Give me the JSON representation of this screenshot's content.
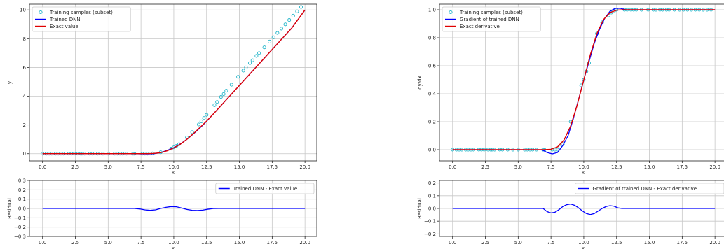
{
  "colors": {
    "samples": "#1fb4c8",
    "dnn": "#0000ff",
    "exact": "#e00000",
    "grid": "#c8c8c8",
    "axis": "#222222"
  },
  "chart_data": [
    {
      "id": "value-top",
      "type": "line",
      "xlim": [
        -1,
        20.9
      ],
      "ylim": [
        -0.5,
        10.4
      ],
      "xticks": [
        0.0,
        2.5,
        5.0,
        7.5,
        10.0,
        12.5,
        15.0,
        17.5,
        20.0
      ],
      "xtick_labels": [
        "0.0",
        "2.5",
        "5.0",
        "7.5",
        "10.0",
        "12.5",
        "15.0",
        "17.5",
        "20.0"
      ],
      "yticks": [
        0,
        2,
        4,
        6,
        8,
        10
      ],
      "ytick_labels": [
        "0",
        "2",
        "4",
        "6",
        "8",
        "10"
      ],
      "xlabel": "x",
      "ylabel": "y",
      "grid": true,
      "legend": "top-left",
      "legend_entries": [
        "Training samples (subset)",
        "Trained DNN",
        "Exact value"
      ],
      "series": [
        {
          "name": "Training samples (subset)",
          "kind": "markers",
          "x": [
            0.0,
            0.3,
            0.5,
            0.7,
            1.0,
            1.2,
            1.4,
            1.6,
            2.0,
            2.2,
            2.4,
            2.7,
            2.9,
            3.0,
            3.2,
            3.6,
            3.8,
            4.2,
            4.6,
            5.0,
            5.5,
            5.7,
            5.9,
            6.1,
            6.4,
            6.9,
            7.0,
            7.6,
            7.8,
            8.0,
            8.2,
            8.4,
            9.0,
            9.8,
            10.0,
            10.2,
            10.4,
            11.0,
            11.4,
            11.9,
            12.1,
            12.3,
            12.5,
            13.1,
            13.3,
            13.6,
            13.8,
            14.0,
            14.4,
            14.9,
            15.3,
            15.5,
            15.8,
            16.0,
            16.3,
            16.5,
            16.9,
            17.3,
            17.6,
            17.9,
            18.2,
            18.5,
            18.8,
            19.1,
            19.4,
            19.7
          ],
          "y": [
            0.0,
            0.0,
            0.0,
            0.0,
            0.0,
            0.0,
            0.0,
            0.0,
            0.0,
            0.0,
            0.0,
            0.0,
            0.0,
            0.0,
            0.0,
            0.0,
            0.0,
            0.0,
            0.0,
            0.0,
            0.0,
            0.0,
            0.0,
            0.0,
            0.0,
            0.0,
            0.0,
            0.0,
            0.0,
            0.0,
            0.01,
            0.02,
            0.1,
            0.35,
            0.44,
            0.54,
            0.66,
            1.12,
            1.5,
            2.03,
            2.25,
            2.48,
            2.7,
            3.38,
            3.6,
            3.95,
            4.15,
            4.38,
            4.8,
            5.35,
            5.78,
            6.0,
            6.3,
            6.5,
            6.8,
            7.0,
            7.4,
            7.8,
            8.1,
            8.4,
            8.7,
            9.0,
            9.3,
            9.6,
            9.9,
            10.2
          ]
        },
        {
          "name": "Trained DNN",
          "kind": "line",
          "x": [
            0,
            7.0,
            7.5,
            8.0,
            8.5,
            9.0,
            9.5,
            10.0,
            10.5,
            11.0,
            11.5,
            12.0,
            12.5,
            13.0,
            14.0,
            15.0,
            16.0,
            17.0,
            18.0,
            19.0,
            20.0
          ],
          "y": [
            0,
            0,
            -0.01,
            -0.02,
            0.0,
            0.08,
            0.23,
            0.42,
            0.68,
            1.0,
            1.38,
            1.8,
            2.25,
            2.75,
            3.75,
            4.75,
            5.75,
            6.75,
            7.75,
            8.75,
            10.0
          ]
        },
        {
          "name": "Exact value",
          "kind": "line",
          "x": [
            0,
            7.0,
            7.5,
            8.0,
            8.5,
            9.0,
            9.5,
            10.0,
            10.5,
            11.0,
            11.5,
            12.0,
            12.5,
            13.0,
            14.0,
            15.0,
            16.0,
            17.0,
            18.0,
            19.0,
            20.0
          ],
          "y": [
            0,
            0,
            0.0,
            0.0,
            0.02,
            0.07,
            0.2,
            0.4,
            0.66,
            1.0,
            1.4,
            1.83,
            2.27,
            2.75,
            3.75,
            4.75,
            5.75,
            6.75,
            7.75,
            8.75,
            10.0
          ]
        }
      ]
    },
    {
      "id": "value-residual",
      "type": "line",
      "xlim": [
        -1,
        20.9
      ],
      "ylim": [
        -0.3,
        0.3
      ],
      "xticks": [
        0.0,
        2.5,
        5.0,
        7.5,
        10.0,
        12.5,
        15.0,
        17.5,
        20.0
      ],
      "xtick_labels": [
        "0.0",
        "2.5",
        "5.0",
        "7.5",
        "10.0",
        "12.5",
        "15.0",
        "17.5",
        "20.0"
      ],
      "yticks": [
        -0.3,
        -0.2,
        -0.1,
        0.0,
        0.1,
        0.2,
        0.3
      ],
      "ytick_labels": [
        "−0.3",
        "−0.2",
        "−0.1",
        "0.0",
        "0.1",
        "0.2",
        "0.3"
      ],
      "xlabel": "x",
      "ylabel": "Residual",
      "grid": true,
      "legend": "top-right",
      "legend_entries": [
        "Trained DNN - Exact value"
      ],
      "series": [
        {
          "name": "Trained DNN - Exact value",
          "kind": "line",
          "x": [
            0,
            7.0,
            7.4,
            7.8,
            8.2,
            8.6,
            9.0,
            9.4,
            9.8,
            10.2,
            10.6,
            11.0,
            11.4,
            11.8,
            12.2,
            12.6,
            13.0,
            13.4,
            20.0
          ],
          "y": [
            0,
            0,
            -0.005,
            -0.015,
            -0.02,
            -0.015,
            0.0,
            0.012,
            0.02,
            0.018,
            0.005,
            -0.01,
            -0.02,
            -0.022,
            -0.018,
            -0.008,
            -0.001,
            0,
            0
          ]
        }
      ]
    },
    {
      "id": "derivative-top",
      "type": "line",
      "xlim": [
        -1,
        20.9
      ],
      "ylim": [
        -0.08,
        1.04
      ],
      "xticks": [
        0.0,
        2.5,
        5.0,
        7.5,
        10.0,
        12.5,
        15.0,
        17.5,
        20.0
      ],
      "xtick_labels": [
        "0.0",
        "2.5",
        "5.0",
        "7.5",
        "10.0",
        "12.5",
        "15.0",
        "17.5",
        "20.0"
      ],
      "yticks": [
        0.0,
        0.2,
        0.4,
        0.6,
        0.8,
        1.0
      ],
      "ytick_labels": [
        "0.0",
        "0.2",
        "0.4",
        "0.6",
        "0.8",
        "1.0"
      ],
      "xlabel": "x",
      "ylabel": "dy/dx",
      "grid": true,
      "legend": "top-left",
      "legend_entries": [
        "Training samples (subset)",
        "Gradient of trained DNN",
        "Exact derivative"
      ],
      "series": [
        {
          "name": "Training samples (subset)",
          "kind": "markers",
          "x": [
            0.0,
            0.3,
            0.5,
            0.7,
            1.0,
            1.2,
            1.4,
            1.6,
            2.0,
            2.2,
            2.4,
            2.7,
            2.9,
            3.0,
            3.2,
            3.6,
            3.8,
            4.2,
            4.6,
            5.0,
            5.5,
            5.7,
            5.9,
            6.1,
            6.4,
            6.9,
            7.0,
            7.6,
            7.8,
            8.0,
            8.2,
            8.4,
            9.0,
            9.8,
            10.0,
            10.2,
            10.4,
            11.0,
            11.4,
            11.9,
            12.1,
            12.3,
            12.5,
            13.1,
            13.3,
            13.6,
            13.8,
            14.0,
            14.4,
            14.9,
            15.3,
            15.5,
            15.8,
            16.0,
            16.3,
            16.5,
            16.9,
            17.3,
            17.6,
            17.9,
            18.2,
            18.5,
            18.8,
            19.1,
            19.4,
            19.7
          ],
          "y": [
            0.0,
            0.0,
            0.0,
            0.0,
            0.0,
            0.0,
            0.0,
            0.0,
            0.0,
            0.0,
            0.0,
            0.0,
            0.0,
            0.0,
            0.0,
            0.0,
            0.0,
            0.0,
            0.0,
            0.0,
            0.0,
            0.0,
            0.0,
            0.0,
            0.0,
            0.0,
            0.0,
            0.0,
            0.0,
            0.0,
            0.02,
            0.04,
            0.2,
            0.46,
            0.5,
            0.56,
            0.62,
            0.83,
            0.91,
            0.96,
            0.98,
            0.99,
            1.0,
            1.0,
            1.0,
            1.0,
            1.0,
            1.0,
            1.0,
            1.0,
            1.0,
            1.0,
            1.0,
            1.0,
            1.0,
            1.0,
            1.0,
            1.0,
            1.0,
            1.0,
            1.0,
            1.0,
            1.0,
            1.0,
            1.0,
            1.0
          ]
        },
        {
          "name": "Gradient of trained DNN",
          "kind": "line",
          "x": [
            0,
            6.8,
            7.2,
            7.6,
            8.0,
            8.4,
            8.8,
            9.2,
            9.6,
            10.0,
            10.4,
            10.8,
            11.2,
            11.6,
            12.0,
            12.4,
            12.8,
            13.2,
            13.6,
            20.0
          ],
          "y": [
            0,
            0,
            -0.02,
            -0.03,
            -0.02,
            0.03,
            0.1,
            0.22,
            0.36,
            0.5,
            0.63,
            0.76,
            0.86,
            0.94,
            0.99,
            1.01,
            1.01,
            1.0,
            1.0,
            1.0
          ]
        },
        {
          "name": "Exact derivative",
          "kind": "line",
          "x": [
            0,
            7.0,
            7.5,
            8.0,
            8.5,
            9.0,
            9.5,
            10.0,
            10.5,
            11.0,
            11.5,
            12.0,
            12.5,
            13.0,
            20.0
          ],
          "y": [
            0,
            0,
            0.003,
            0.02,
            0.07,
            0.17,
            0.32,
            0.5,
            0.68,
            0.83,
            0.93,
            0.98,
            0.997,
            1.0,
            1.0
          ]
        }
      ]
    },
    {
      "id": "derivative-residual",
      "type": "line",
      "xlim": [
        -1,
        20.9
      ],
      "ylim": [
        -0.22,
        0.22
      ],
      "xticks": [
        0.0,
        2.5,
        5.0,
        7.5,
        10.0,
        12.5,
        15.0,
        17.5,
        20.0
      ],
      "xtick_labels": [
        "0.0",
        "2.5",
        "5.0",
        "7.5",
        "10.0",
        "12.5",
        "15.0",
        "17.5",
        "20.0"
      ],
      "yticks": [
        -0.2,
        -0.1,
        0.0,
        0.1,
        0.2
      ],
      "ytick_labels": [
        "−0.2",
        "−0.1",
        "0.0",
        "0.1",
        "0.2"
      ],
      "xlabel": "x",
      "ylabel": "Residual",
      "grid": true,
      "legend": "top-right",
      "legend_entries": [
        "Gradient of trained DNN - Exact derivative"
      ],
      "series": [
        {
          "name": "Gradient of trained DNN - Exact derivative",
          "kind": "line",
          "x": [
            0,
            6.9,
            7.2,
            7.5,
            7.8,
            8.1,
            8.4,
            8.7,
            9.0,
            9.3,
            9.6,
            9.9,
            10.2,
            10.5,
            10.8,
            11.1,
            11.4,
            11.7,
            12.0,
            12.3,
            12.6,
            12.9,
            13.2,
            20.0
          ],
          "y": [
            0,
            0,
            -0.025,
            -0.035,
            -0.03,
            -0.01,
            0.015,
            0.03,
            0.035,
            0.025,
            0.005,
            -0.02,
            -0.04,
            -0.048,
            -0.04,
            -0.02,
            0.0,
            0.015,
            0.022,
            0.018,
            0.005,
            0.0,
            0.0,
            0.0
          ]
        }
      ]
    }
  ]
}
